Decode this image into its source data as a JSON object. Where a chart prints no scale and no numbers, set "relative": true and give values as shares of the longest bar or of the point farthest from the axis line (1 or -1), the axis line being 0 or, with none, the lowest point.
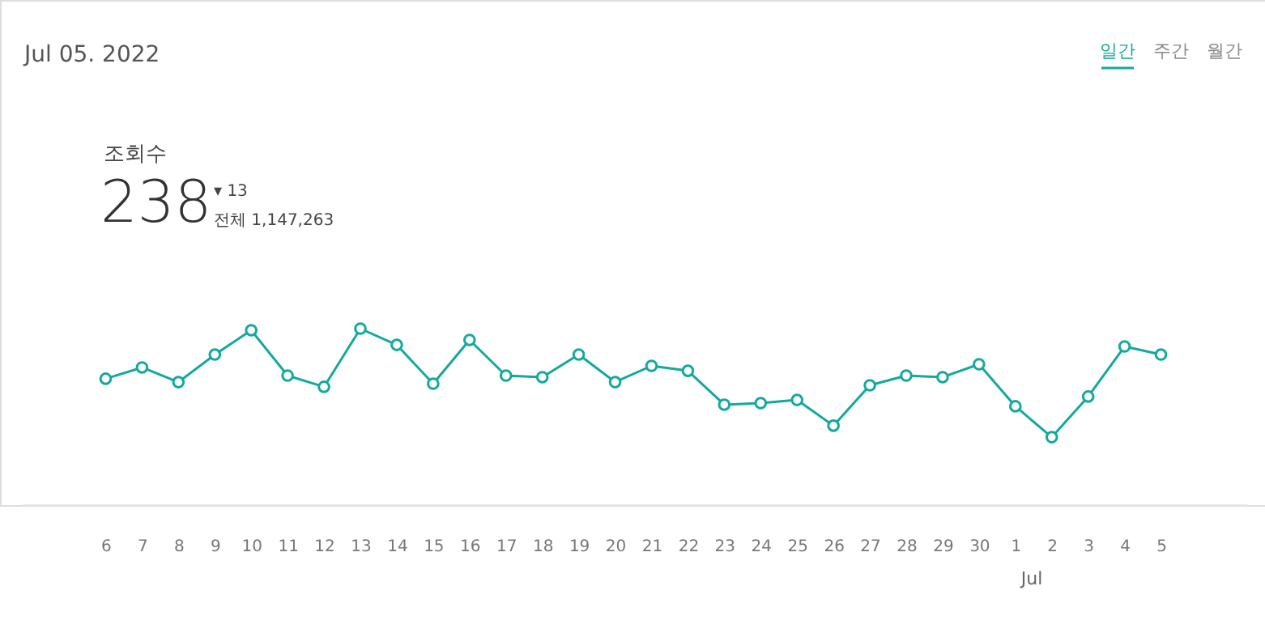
{
  "chart_data": {
    "type": "line",
    "title": "Jul 05. 2022",
    "relative": true,
    "marker": "circle",
    "line_style": "solid",
    "grid": false,
    "categories": [
      "6",
      "7",
      "8",
      "9",
      "10",
      "11",
      "12",
      "13",
      "14",
      "15",
      "16",
      "17",
      "18",
      "19",
      "20",
      "21",
      "22",
      "23",
      "24",
      "25",
      "26",
      "27",
      "28",
      "29",
      "30",
      "1",
      "2",
      "3",
      "4",
      "5"
    ],
    "series": [
      {
        "color": "#14a99c",
        "values": [
          0.716,
          0.78,
          0.697,
          0.853,
          0.991,
          0.734,
          0.67,
          1,
          0.908,
          0.688,
          0.936,
          0.734,
          0.725,
          0.853,
          0.697,
          0.789,
          0.761,
          0.569,
          0.578,
          0.596,
          0.45,
          0.679,
          0.734,
          0.725,
          0.798,
          0.56,
          0.385,
          0.615,
          0.899,
          0.853
        ]
      }
    ],
    "annotations": [
      "일간",
      "주간",
      "월간",
      "조회수",
      "238",
      "▾ 13",
      "전체 1,147,263",
      "Jul"
    ]
  }
}
